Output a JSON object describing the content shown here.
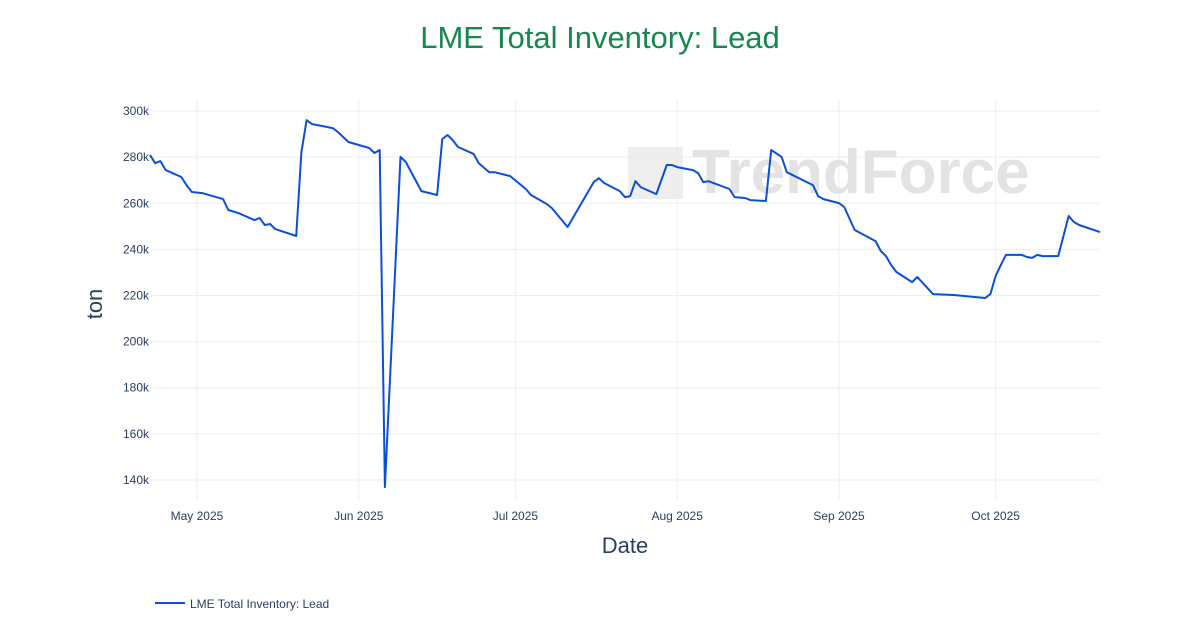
{
  "chart_data": {
    "type": "line",
    "title": "LME Total Inventory: Lead",
    "xlabel": "Date",
    "ylabel": "ton",
    "x_ticks": [
      {
        "date": "2025-05-01",
        "label": "May 2025"
      },
      {
        "date": "2025-06-01",
        "label": "Jun 2025"
      },
      {
        "date": "2025-07-01",
        "label": "Jul 2025"
      },
      {
        "date": "2025-08-01",
        "label": "Aug 2025"
      },
      {
        "date": "2025-09-01",
        "label": "Sep 2025"
      },
      {
        "date": "2025-10-01",
        "label": "Oct 2025"
      }
    ],
    "y_ticks": [
      {
        "value": 140000,
        "label": "140k"
      },
      {
        "value": 160000,
        "label": "160k"
      },
      {
        "value": 180000,
        "label": "180k"
      },
      {
        "value": 200000,
        "label": "200k"
      },
      {
        "value": 220000,
        "label": "220k"
      },
      {
        "value": 240000,
        "label": "240k"
      },
      {
        "value": 260000,
        "label": "260k"
      },
      {
        "value": 280000,
        "label": "280k"
      },
      {
        "value": 300000,
        "label": "300k"
      }
    ],
    "xlim": [
      "2025-04-22",
      "2025-10-21"
    ],
    "ylim": [
      131300,
      304800
    ],
    "grid": true,
    "legend_position": "bottom-left",
    "series": [
      {
        "name": "LME Total Inventory: Lead",
        "color": "#0b4fd8",
        "points": [
          [
            "2025-04-22",
            280900
          ],
          [
            "2025-04-23",
            277400
          ],
          [
            "2025-04-24",
            278300
          ],
          [
            "2025-04-25",
            274400
          ],
          [
            "2025-04-28",
            271400
          ],
          [
            "2025-04-29",
            267900
          ],
          [
            "2025-04-30",
            264900
          ],
          [
            "2025-05-02",
            264400
          ],
          [
            "2025-05-06",
            261800
          ],
          [
            "2025-05-07",
            257100
          ],
          [
            "2025-05-09",
            255700
          ],
          [
            "2025-05-12",
            252700
          ],
          [
            "2025-05-13",
            253600
          ],
          [
            "2025-05-14",
            250600
          ],
          [
            "2025-05-15",
            251000
          ],
          [
            "2025-05-16",
            248800
          ],
          [
            "2025-05-20",
            245800
          ],
          [
            "2025-05-21",
            282200
          ],
          [
            "2025-05-22",
            296100
          ],
          [
            "2025-05-23",
            294400
          ],
          [
            "2025-05-27",
            292600
          ],
          [
            "2025-05-28",
            290900
          ],
          [
            "2025-05-30",
            286600
          ],
          [
            "2025-06-03",
            284000
          ],
          [
            "2025-06-04",
            281800
          ],
          [
            "2025-06-05",
            283100
          ],
          [
            "2025-06-06",
            136900
          ],
          [
            "2025-06-09",
            280100
          ],
          [
            "2025-06-10",
            277900
          ],
          [
            "2025-06-13",
            265300
          ],
          [
            "2025-06-16",
            263600
          ],
          [
            "2025-06-17",
            287900
          ],
          [
            "2025-06-18",
            289600
          ],
          [
            "2025-06-19",
            287400
          ],
          [
            "2025-06-20",
            284400
          ],
          [
            "2025-06-23",
            281400
          ],
          [
            "2025-06-24",
            277400
          ],
          [
            "2025-06-26",
            273500
          ],
          [
            "2025-06-27",
            273500
          ],
          [
            "2025-06-30",
            271800
          ],
          [
            "2025-07-03",
            266200
          ],
          [
            "2025-07-04",
            263600
          ],
          [
            "2025-07-07",
            259700
          ],
          [
            "2025-07-08",
            257900
          ],
          [
            "2025-07-11",
            249700
          ],
          [
            "2025-07-16",
            269200
          ],
          [
            "2025-07-17",
            270900
          ],
          [
            "2025-07-18",
            268800
          ],
          [
            "2025-07-21",
            265300
          ],
          [
            "2025-07-22",
            262700
          ],
          [
            "2025-07-23",
            263100
          ],
          [
            "2025-07-24",
            269600
          ],
          [
            "2025-07-25",
            267000
          ],
          [
            "2025-07-28",
            264000
          ],
          [
            "2025-07-30",
            276600
          ],
          [
            "2025-07-31",
            276600
          ],
          [
            "2025-08-01",
            275700
          ],
          [
            "2025-08-04",
            274400
          ],
          [
            "2025-08-05",
            273100
          ],
          [
            "2025-08-06",
            269200
          ],
          [
            "2025-08-07",
            269600
          ],
          [
            "2025-08-11",
            266200
          ],
          [
            "2025-08-12",
            262700
          ],
          [
            "2025-08-14",
            262300
          ],
          [
            "2025-08-15",
            261400
          ],
          [
            "2025-08-18",
            261000
          ],
          [
            "2025-08-19",
            283100
          ],
          [
            "2025-08-21",
            280100
          ],
          [
            "2025-08-22",
            273500
          ],
          [
            "2025-08-27",
            267900
          ],
          [
            "2025-08-28",
            263100
          ],
          [
            "2025-08-29",
            261800
          ],
          [
            "2025-09-01",
            260100
          ],
          [
            "2025-09-02",
            258400
          ],
          [
            "2025-09-04",
            248400
          ],
          [
            "2025-09-08",
            243600
          ],
          [
            "2025-09-09",
            239300
          ],
          [
            "2025-09-10",
            237100
          ],
          [
            "2025-09-11",
            233200
          ],
          [
            "2025-09-12",
            230200
          ],
          [
            "2025-09-15",
            225800
          ],
          [
            "2025-09-16",
            228000
          ],
          [
            "2025-09-19",
            220600
          ],
          [
            "2025-09-23",
            220200
          ],
          [
            "2025-09-29",
            218900
          ],
          [
            "2025-09-30",
            220600
          ],
          [
            "2025-10-01",
            228400
          ],
          [
            "2025-10-02",
            233200
          ],
          [
            "2025-10-03",
            237600
          ],
          [
            "2025-10-06",
            237600
          ],
          [
            "2025-10-07",
            236700
          ],
          [
            "2025-10-08",
            236300
          ],
          [
            "2025-10-09",
            237600
          ],
          [
            "2025-10-10",
            237100
          ],
          [
            "2025-10-13",
            237100
          ],
          [
            "2025-10-15",
            254500
          ],
          [
            "2025-10-16",
            251900
          ],
          [
            "2025-10-17",
            250600
          ],
          [
            "2025-10-21",
            247500
          ]
        ]
      }
    ]
  },
  "watermark": "TrendForce",
  "colors": {
    "title": "#17874f",
    "line": "#0b4fd8",
    "grid": "#eeeeee",
    "text": "#2a3f5f"
  }
}
